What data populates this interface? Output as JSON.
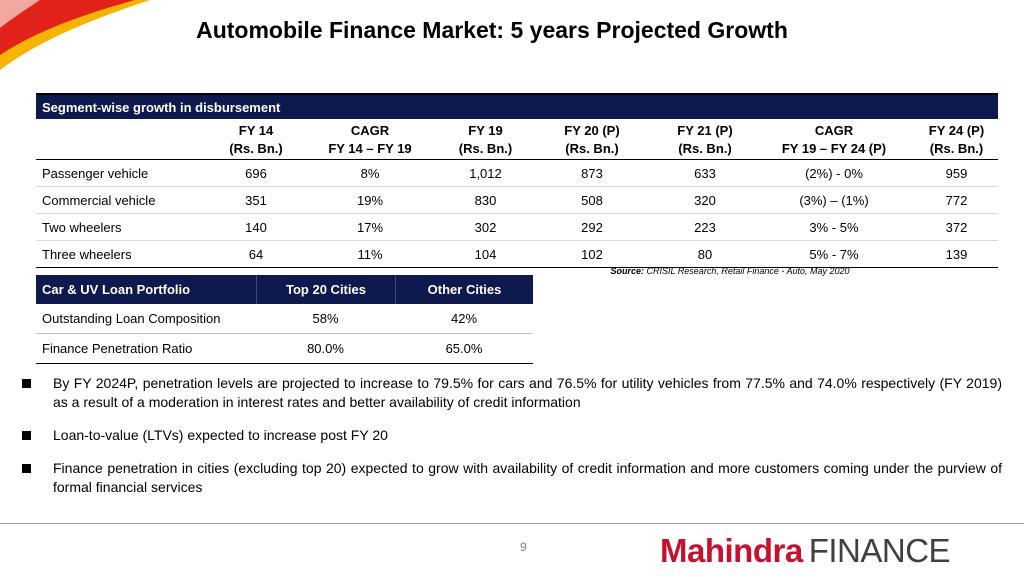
{
  "title": "Automobile Finance Market: 5 years Projected Growth",
  "segment_table": {
    "caption": "Segment-wise growth in disbursement",
    "columns": [
      {
        "l1": "",
        "l2": ""
      },
      {
        "l1": "FY 14",
        "l2": "(Rs. Bn.)"
      },
      {
        "l1": "CAGR",
        "l2": "FY 14 – FY 19"
      },
      {
        "l1": "FY 19",
        "l2": "(Rs. Bn.)"
      },
      {
        "l1": "FY 20 (P)",
        "l2": "(Rs. Bn.)"
      },
      {
        "l1": "FY 21 (P)",
        "l2": "(Rs. Bn.)"
      },
      {
        "l1": "CAGR",
        "l2": "FY 19 – FY 24 (P)"
      },
      {
        "l1": "FY 24 (P)",
        "l2": "(Rs. Bn.)"
      }
    ],
    "rows": [
      [
        "Passenger vehicle",
        "696",
        "8%",
        "1,012",
        "873",
        "633",
        "(2%) - 0%",
        "959"
      ],
      [
        "Commercial vehicle",
        "351",
        "19%",
        "830",
        "508",
        "320",
        "(3%) – (1%)",
        "772"
      ],
      [
        "Two wheelers",
        "140",
        "17%",
        "302",
        "292",
        "223",
        "3% - 5%",
        "372"
      ],
      [
        "Three wheelers",
        "64",
        "11%",
        "104",
        "102",
        "80",
        "5% - 7%",
        "139"
      ]
    ]
  },
  "source": {
    "label": "Source:",
    "text": " CRISIL Research, Retail Finance - Auto, May 2020"
  },
  "loan_table": {
    "headers": [
      "Car & UV Loan Portfolio",
      "Top 20 Cities",
      "Other Cities"
    ],
    "rows": [
      [
        "Outstanding Loan Composition",
        "58%",
        "42%"
      ],
      [
        "Finance Penetration Ratio",
        "80.0%",
        "65.0%"
      ]
    ]
  },
  "bullets": [
    "By FY 2024P, penetration levels are projected to increase to 79.5% for cars and 76.5% for utility vehicles from 77.5% and 74.0% respectively (FY 2019) as a result of a moderation in interest rates and better availability of credit information",
    "Loan-to-value (LTVs) expected to increase post FY 20",
    "Finance penetration in cities (excluding top 20) expected to grow with availability of credit information and more customers coming under the purview of formal financial services"
  ],
  "page_number": "9",
  "brand": {
    "name": "Mahindra",
    "suffix": "FINANCE"
  },
  "colors": {
    "header_navy": "#0e1a4e",
    "brand_red": "#c8102e",
    "swoosh_red": "#e2231a",
    "swoosh_yellow": "#f5b400"
  }
}
